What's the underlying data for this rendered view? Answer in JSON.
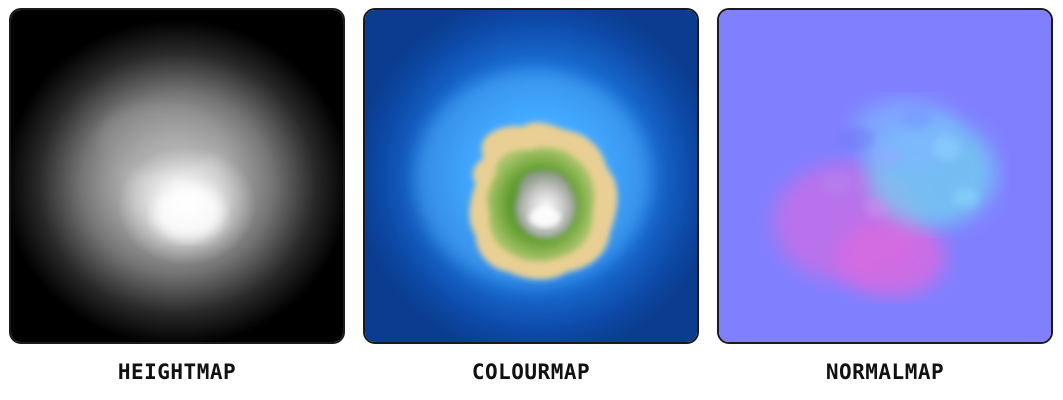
{
  "panels": [
    {
      "label": "HEIGHTMAP"
    },
    {
      "label": "COLOURMAP"
    },
    {
      "label": "NORMALMAP"
    }
  ],
  "colors": {
    "border": "#1a1a1a",
    "caption_text": "#111111",
    "heightmap_bg": "#000000",
    "heightmap_peak": "#ffffff",
    "colourmap_deep_water": "#0a3d8f",
    "colourmap_shallow_water": "#2d9bff",
    "colourmap_sand": "#e9cf93",
    "colourmap_grass": "#5f9e2f",
    "colourmap_rock": "#9a9a9a",
    "colourmap_snow": "#ffffff",
    "normalmap_flat": "#8080ff",
    "normalmap_magenta": "#d86ae0",
    "normalmap_cyan": "#70d8ee"
  }
}
